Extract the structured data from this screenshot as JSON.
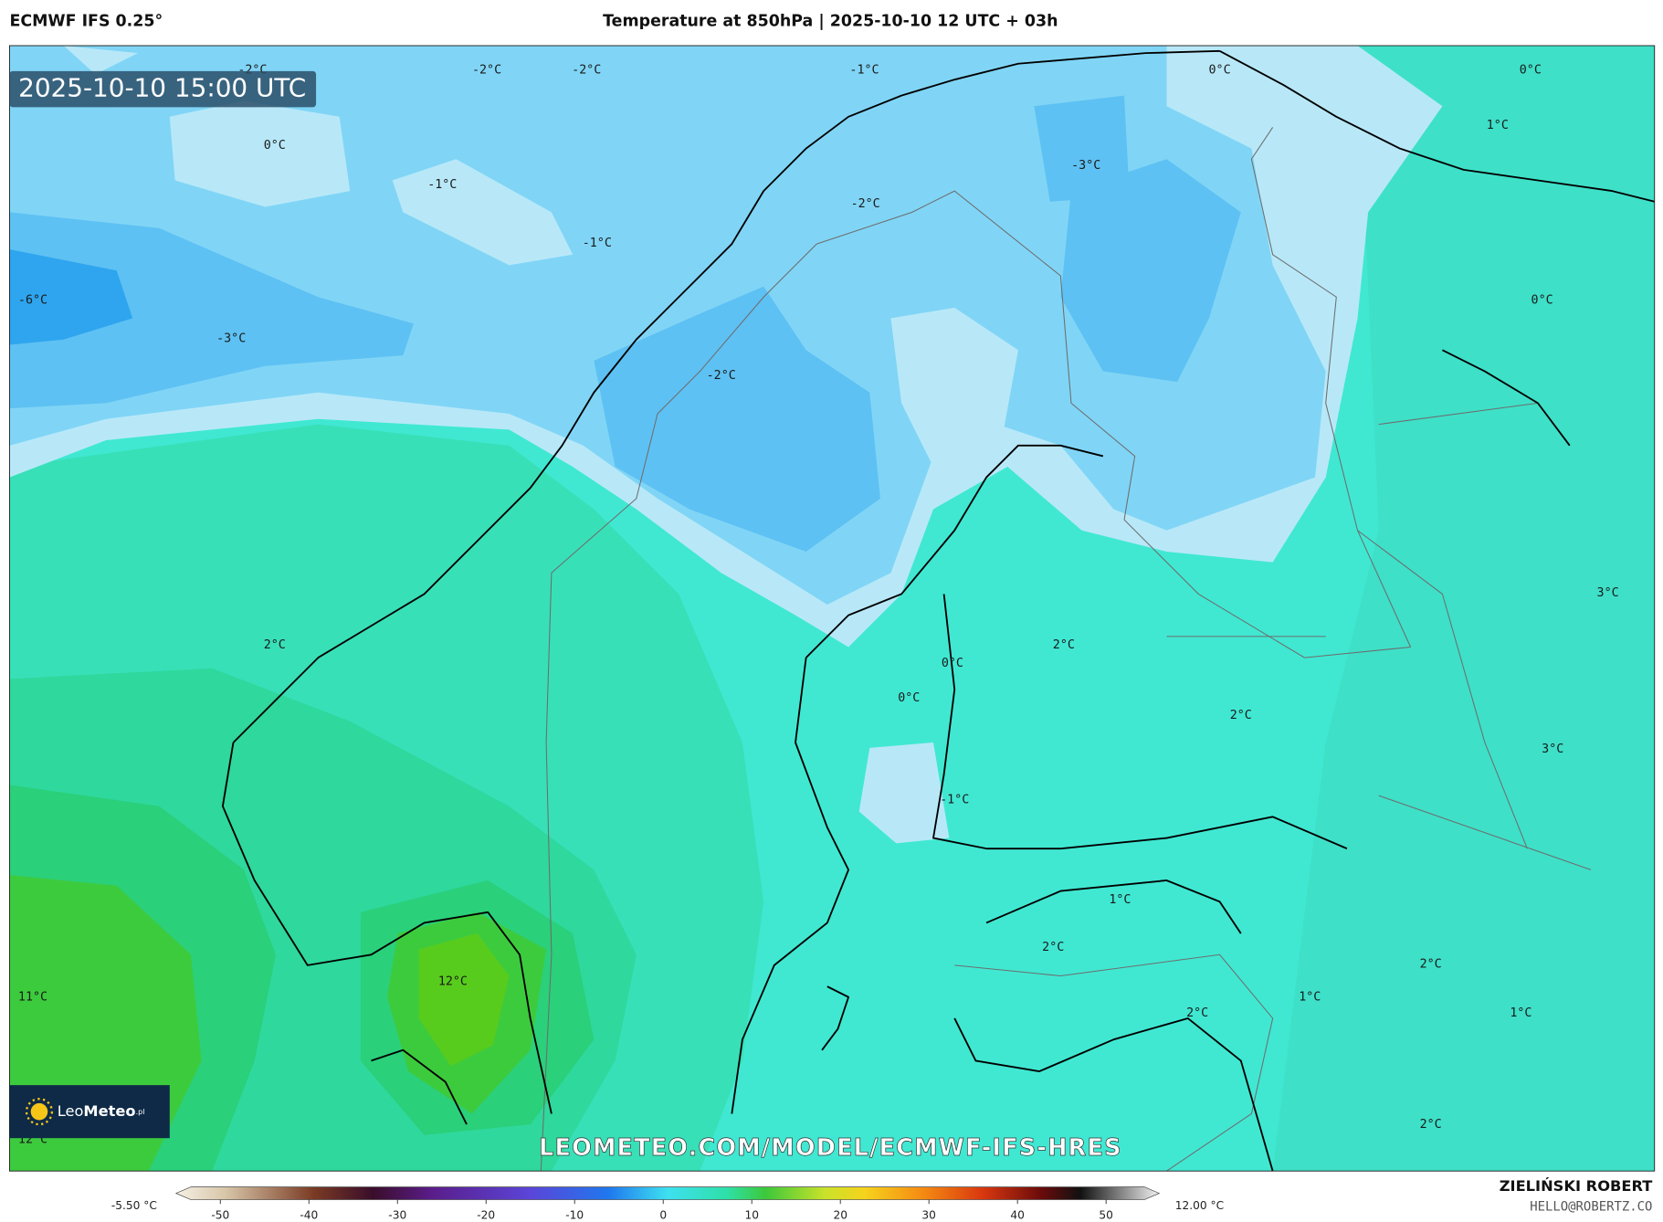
{
  "header": {
    "model": "ECMWF IFS 0.25°",
    "title": "Temperature at 850hPa | 2025-10-10 12 UTC + 03h"
  },
  "map": {
    "timestamp": "2025-10-10 15:00 UTC",
    "labels": [
      "-2°C",
      "-2°C",
      "-2°C",
      "-1°C",
      "0°C",
      "0°C",
      "1°C",
      "0°C",
      "-1°C",
      "-3°C",
      "-2°C",
      "-1°C",
      "-6°C",
      "0°C",
      "-3°C",
      "-2°C",
      "3°C",
      "2°C",
      "2°C",
      "0°C",
      "0°C",
      "2°C",
      "3°C",
      "-1°C",
      "1°C",
      "2°C",
      "2°C",
      "12°C",
      "11°C",
      "1°C",
      "1°C",
      "2°C",
      "2°C",
      "12°C"
    ],
    "watermark": "LEOMETEO.COM/MODEL/ECMWF-IFS-HRES",
    "logo": {
      "first": "Leo",
      "second": "Meteo",
      "suffix": ".pl"
    }
  },
  "colorbar": {
    "min_label": "-5.50 °C",
    "max_label": "12.00 °C",
    "lim": [
      -55,
      56
    ],
    "ticks": [
      -50,
      -40,
      -30,
      -20,
      -10,
      0,
      10,
      20,
      30,
      40,
      50
    ]
  },
  "author": {
    "name": "ZIELIŃSKI ROBERT",
    "email": "HELLO@ROBERTZ.CO"
  }
}
